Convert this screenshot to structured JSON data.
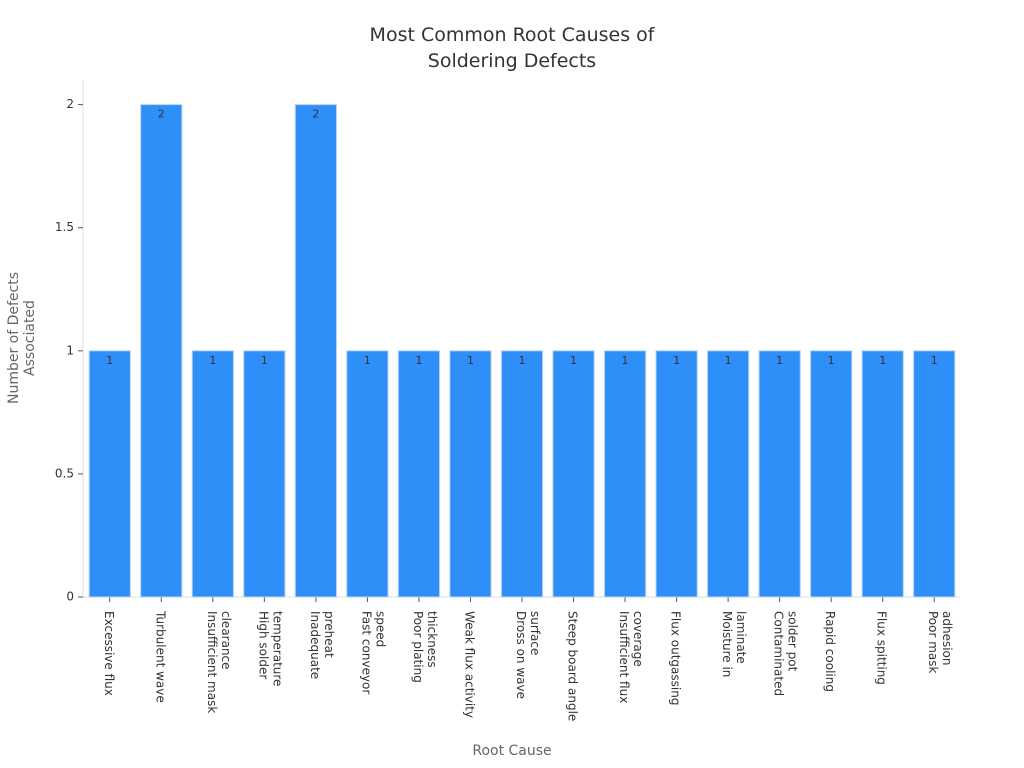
{
  "chart_data": {
    "type": "bar",
    "title": "Most Common Root Causes of Soldering Defects",
    "x_label": "Root Cause",
    "y_label": "Number of Defects Associated",
    "categories": [
      "Excessive flux",
      "Turbulent wave",
      "Insufficient mask clearance",
      "High solder temperature",
      "Inadequate preheat",
      "Fast conveyor speed",
      "Poor plating thickness",
      "Weak flux activity",
      "Dross on wave surface",
      "Steep board angle",
      "Insufficient flux coverage",
      "Flux outgassing",
      "Moisture in laminate",
      "Contaminated solder pot",
      "Rapid cooling",
      "Flux spitting",
      "Poor mask adhesion"
    ],
    "values": [
      1,
      2,
      1,
      1,
      2,
      1,
      1,
      1,
      1,
      1,
      1,
      1,
      1,
      1,
      1,
      1,
      1
    ],
    "color": "#2e8ff8",
    "ylim": [
      0,
      2.1
    ],
    "yticks": [
      0,
      0.5,
      1,
      1.5,
      2
    ],
    "grid": false
  }
}
